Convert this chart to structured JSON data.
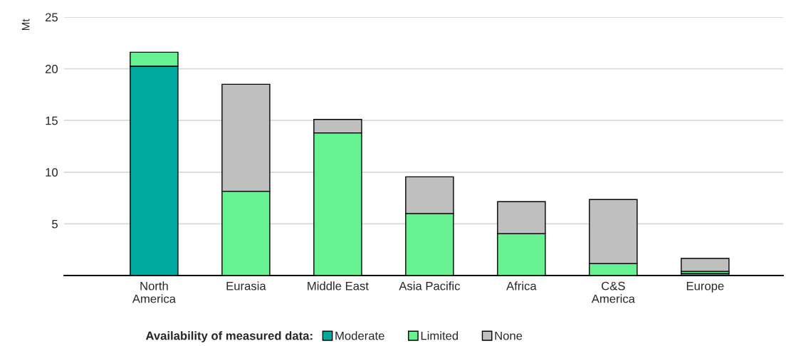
{
  "chart_data": {
    "type": "bar",
    "stacked": true,
    "ylabel": "Mt",
    "legend_title": "Availability of measured data:",
    "categories": [
      "North\nAmerica",
      "Eurasia",
      "Middle East",
      "Asia Pacific",
      "Africa",
      "C&S\nAmerica",
      "Europe"
    ],
    "series": [
      {
        "name": "Moderate",
        "color": "#00a99d",
        "values": [
          20.25,
          null,
          null,
          null,
          null,
          null,
          0.2
        ]
      },
      {
        "name": "Limited",
        "color": "#66f291",
        "values": [
          1.35,
          8.15,
          13.8,
          6.0,
          4.05,
          1.15,
          0.2
        ]
      },
      {
        "name": "None",
        "color": "#bfbfbf",
        "values": [
          null,
          10.35,
          1.3,
          3.55,
          3.1,
          6.2,
          1.25
        ]
      }
    ],
    "ylim": [
      0,
      25
    ],
    "yticks": [
      {
        "value": 0,
        "label": null
      },
      5,
      10,
      15,
      20,
      25
    ],
    "grid": "y",
    "legend": "bottom"
  }
}
